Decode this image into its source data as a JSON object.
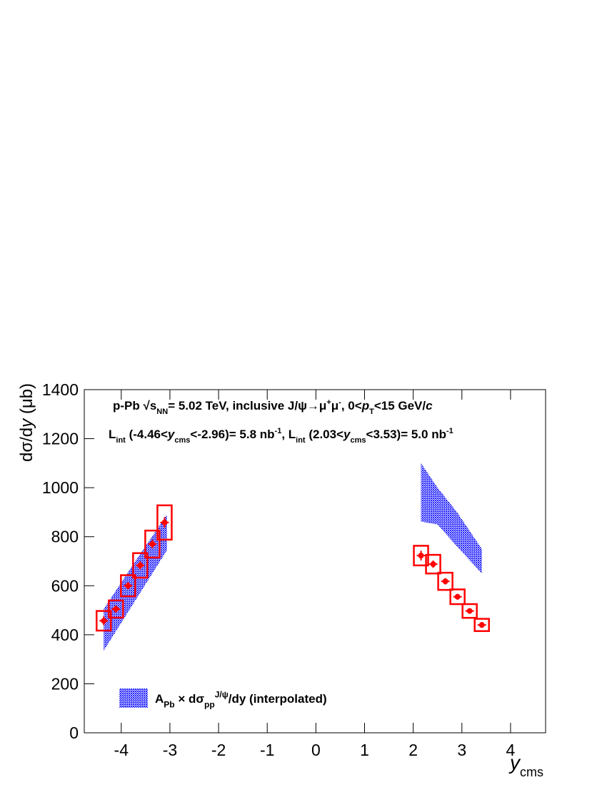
{
  "chart_data": {
    "type": "errorbar",
    "y_label": [
      {
        "text": "dσ/d",
        "s": "n"
      },
      {
        "text": "y",
        "s": "it"
      },
      {
        "text": " (μb)",
        "s": "n"
      }
    ],
    "x_label": [
      {
        "text": "y",
        "s": "it"
      },
      {
        "text": "cms",
        "s": "sub"
      }
    ],
    "annotations": [
      [
        {
          "text": "p-Pb  √",
          "s": "n"
        },
        {
          "text": "s",
          "s": "n"
        },
        {
          "text": "NN",
          "s": "sub"
        },
        {
          "text": "= 5.02 TeV, inclusive J/ψ→μ",
          "s": "n"
        },
        {
          "text": "+",
          "s": "sup"
        },
        {
          "text": "μ",
          "s": "n"
        },
        {
          "text": "-",
          "s": "sup"
        },
        {
          "text": ", 0<",
          "s": "n"
        },
        {
          "text": "p",
          "s": "it"
        },
        {
          "text": "T",
          "s": "sub"
        },
        {
          "text": "<15 GeV/",
          "s": "n"
        },
        {
          "text": "c",
          "s": "it"
        }
      ],
      [
        {
          "text": "L",
          "s": "n"
        },
        {
          "text": "int",
          "s": "sub"
        },
        {
          "text": " (-4.46<",
          "s": "n"
        },
        {
          "text": "y",
          "s": "it"
        },
        {
          "text": "cms",
          "s": "sub"
        },
        {
          "text": "<-2.96)= 5.8 nb",
          "s": "n"
        },
        {
          "text": "-1",
          "s": "sup"
        },
        {
          "text": ", L",
          "s": "n"
        },
        {
          "text": "int",
          "s": "sub"
        },
        {
          "text": " (2.03<",
          "s": "n"
        },
        {
          "text": "y",
          "s": "it"
        },
        {
          "text": "cms",
          "s": "sub"
        },
        {
          "text": "<3.53)= 5.0 nb",
          "s": "n"
        },
        {
          "text": "-1",
          "s": "sup"
        }
      ]
    ],
    "xlim": [
      -4.76,
      4.72
    ],
    "ylim": [
      0,
      1400
    ],
    "xticks": [
      -4,
      -3,
      -2,
      -1,
      0,
      1,
      2,
      3,
      4
    ],
    "yticks": [
      0,
      200,
      400,
      600,
      800,
      1000,
      1200,
      1400
    ],
    "series": [
      {
        "color": "#ff0000",
        "x": [
          -4.36,
          -4.11,
          -3.86,
          -3.61,
          -3.36,
          -3.11
        ],
        "values": [
          457,
          505,
          600,
          683,
          770,
          858
        ],
        "stat_err": [
          18,
          15,
          15,
          17,
          18,
          22
        ],
        "syst_err": [
          40,
          35,
          43,
          50,
          55,
          70
        ]
      },
      {
        "color": "#ff0000",
        "x": [
          2.16,
          2.41,
          2.66,
          2.91,
          3.16,
          3.41
        ],
        "values": [
          723,
          688,
          618,
          555,
          497,
          440
        ],
        "stat_err": [
          20,
          15,
          13,
          12,
          11,
          12
        ],
        "syst_err": [
          40,
          38,
          35,
          30,
          28,
          25
        ]
      }
    ],
    "bands": [
      {
        "color": "#2a2aff",
        "name": [
          {
            "text": "A",
            "s": "n"
          },
          {
            "text": "Pb",
            "s": "sub"
          },
          {
            "text": " × dσ",
            "s": "n"
          },
          {
            "text": "pp",
            "s": "sub"
          },
          {
            "text": "J/ψ",
            "s": "sup"
          },
          {
            "text": "/dy (interpolated)",
            "s": "n"
          }
        ],
        "x": [
          -4.36,
          -3.71,
          -3.06
        ],
        "low": [
          335,
          540,
          745
        ],
        "high": [
          505,
          700,
          890
        ]
      },
      {
        "color": "#2a2aff",
        "x": [
          2.16,
          2.5,
          2.9,
          3.41
        ],
        "low": [
          862,
          850,
          760,
          650
        ],
        "high": [
          1100,
          1000,
          900,
          750
        ]
      }
    ]
  }
}
